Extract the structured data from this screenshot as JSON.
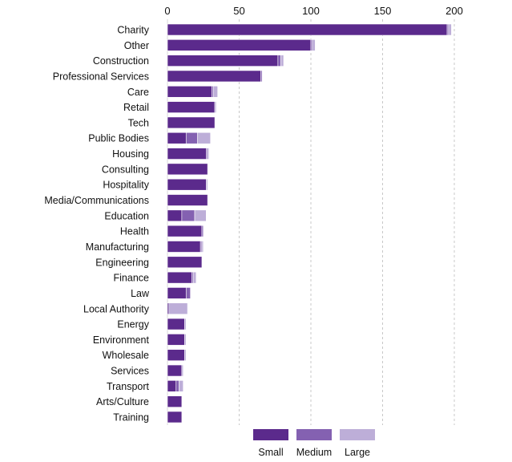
{
  "chart_data": {
    "type": "bar",
    "orientation": "horizontal",
    "stacked": true,
    "xlim": [
      0,
      200
    ],
    "x_ticks": [
      0,
      50,
      100,
      150,
      200
    ],
    "grid": "vertical-dashed",
    "axis_position": "top",
    "legend_position": "bottom",
    "categories": [
      "Charity",
      "Other",
      "Construction",
      "Professional Services",
      "Care",
      "Retail",
      "Tech",
      "Public Bodies",
      "Housing",
      "Consulting",
      "Hospitality",
      "Media/Communications",
      "Education",
      "Health",
      "Manufacturing",
      "Engineering",
      "Finance",
      "Law",
      "Local Authority",
      "Energy",
      "Environment",
      "Wholesale",
      "Services",
      "Transport",
      "Arts/Culture",
      "Training"
    ],
    "series": [
      {
        "name": "Small",
        "color": "#5b2a8c",
        "values": [
          195,
          100,
          77,
          65,
          31,
          33,
          33,
          13,
          27,
          28,
          27,
          28,
          10,
          24,
          23,
          24,
          17,
          13,
          1,
          12,
          12,
          12,
          10,
          6,
          10,
          10
        ]
      },
      {
        "name": "Medium",
        "color": "#8461b1",
        "values": [
          1,
          1,
          2,
          1,
          1,
          0,
          0,
          8,
          1,
          0,
          0,
          0,
          9,
          1,
          1,
          0,
          1,
          3,
          0,
          0,
          0,
          0,
          0,
          2,
          0,
          0
        ]
      },
      {
        "name": "Large",
        "color": "#bdaed8",
        "values": [
          2,
          2,
          2,
          0,
          3,
          1,
          0,
          9,
          1,
          0,
          1,
          0,
          8,
          0,
          1,
          0,
          2,
          0,
          13,
          1,
          1,
          1,
          1,
          3,
          0,
          0
        ]
      }
    ]
  }
}
